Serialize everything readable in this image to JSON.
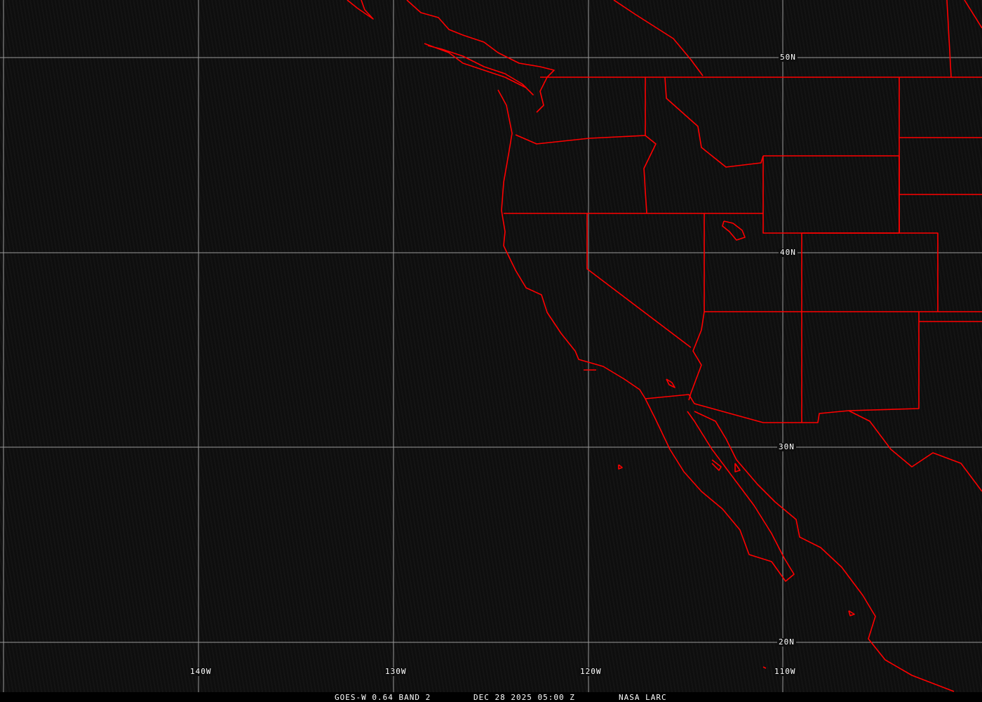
{
  "title": "GOES-W 0.64 BAND 2 satellite image",
  "caption": {
    "product": "GOES-W 0.64 BAND 2",
    "datetime": "DEC 28 2025 05:00 Z",
    "credit": "NASA LARC"
  },
  "grid": {
    "lon_labels": [
      "140W",
      "130W",
      "120W",
      "110W"
    ],
    "lat_labels": [
      "50N",
      "40N",
      "30N",
      "20N"
    ]
  },
  "colors": {
    "boundaries": "#ff0000",
    "grid": "#9a9a9a",
    "text": "#ffffff",
    "background": "#0e0e0e"
  }
}
